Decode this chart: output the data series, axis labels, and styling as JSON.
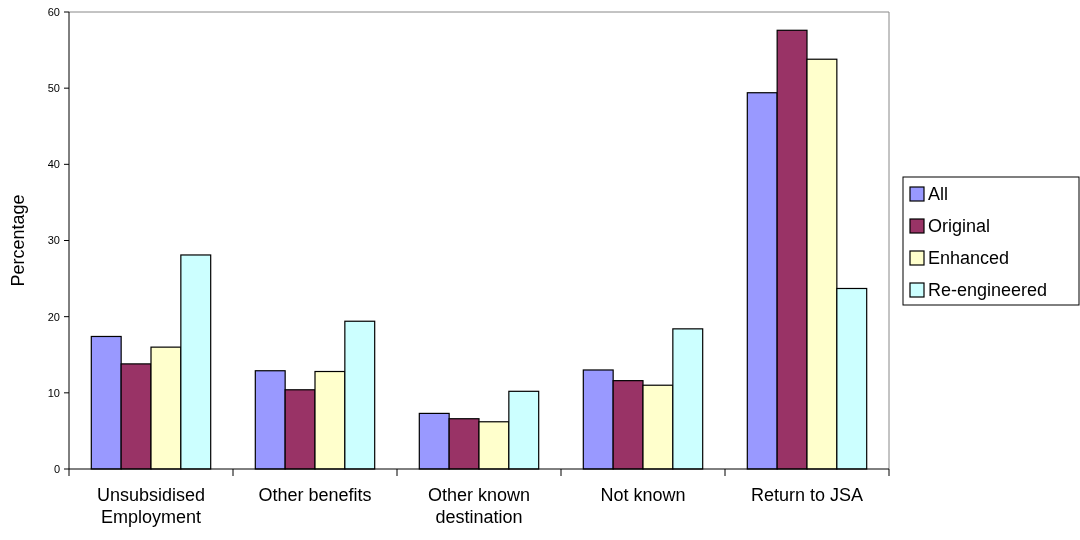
{
  "chart_data": {
    "type": "bar",
    "ylabel": "Percentage",
    "categories": [
      "Unsubsidised Employment",
      "Other benefits",
      "Other known destination",
      "Not known",
      "Return to JSA"
    ],
    "series": [
      {
        "name": "All",
        "color": "#9999ff",
        "values": [
          17.4,
          12.9,
          7.3,
          13.0,
          49.4
        ]
      },
      {
        "name": "Original",
        "color": "#993366",
        "values": [
          13.8,
          10.4,
          6.6,
          11.6,
          57.6
        ]
      },
      {
        "name": "Enhanced",
        "color": "#ffffcc",
        "values": [
          16.0,
          12.8,
          6.2,
          11.0,
          53.8
        ]
      },
      {
        "name": "Re-engineered",
        "color": "#ccffff",
        "values": [
          28.1,
          19.4,
          10.2,
          18.4,
          23.7
        ]
      }
    ],
    "ylim": [
      0,
      60
    ],
    "yticks": [
      0,
      10,
      20,
      30,
      40,
      50,
      60
    ],
    "grid": false,
    "legend": "right"
  }
}
